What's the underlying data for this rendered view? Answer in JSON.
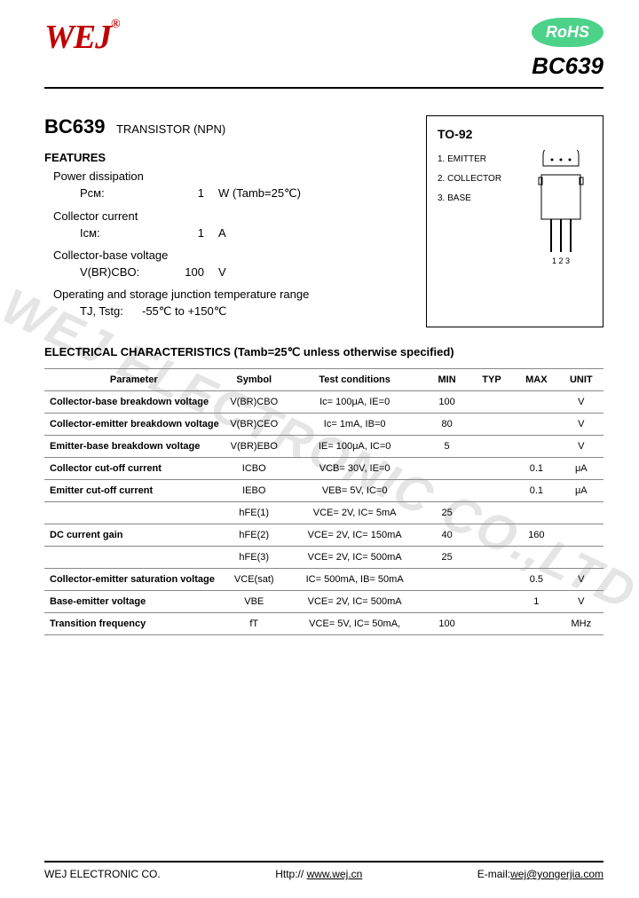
{
  "header": {
    "logo_text": "WEJ",
    "logo_reg": "®",
    "logo_color": "#c00000",
    "rohs_text": "RoHS",
    "rohs_bg": "#4dd28a",
    "part_number": "BC639"
  },
  "title": {
    "part": "BC639",
    "type": "TRANSISTOR (NPN)"
  },
  "features_heading": "FEATURES",
  "features": [
    {
      "label": "Power dissipation",
      "symbol": "Pᴄᴍ:",
      "value": "1",
      "unit": "W (Tamb=25℃)"
    },
    {
      "label": "Collector current",
      "symbol": "Iᴄᴍ:",
      "value": "1",
      "unit": "A"
    },
    {
      "label": "Collector-base voltage",
      "symbol": "V(BR)CBO:",
      "value": "100",
      "unit": "V"
    }
  ],
  "temp_label": "Operating and storage junction temperature range",
  "temp_symbol": "TJ, Tstg:",
  "temp_value": "-55℃ to +150℃",
  "package": {
    "name": "TO-92",
    "pins": [
      "1. EMITTER",
      "2. COLLECTOR",
      "3. BASE"
    ],
    "pin_labels": "1 2 3"
  },
  "elec_heading": "ELECTRICAL CHARACTERISTICS (Tamb=25℃    unless   otherwise   specified)",
  "table": {
    "columns": [
      "Parameter",
      "Symbol",
      "Test   conditions",
      "MIN",
      "TYP",
      "MAX",
      "UNIT"
    ],
    "rows": [
      {
        "param": "Collector-base breakdown voltage",
        "symbol": "V(BR)CBO",
        "cond": "Ic= 100μA, IE=0",
        "min": "100",
        "typ": "",
        "max": "",
        "unit": "V"
      },
      {
        "param": "Collector-emitter breakdown voltage",
        "symbol": "V(BR)CEO",
        "cond": "Ic= 1mA, IB=0",
        "min": "80",
        "typ": "",
        "max": "",
        "unit": "V"
      },
      {
        "param": "Emitter-base breakdown voltage",
        "symbol": "V(BR)EBO",
        "cond": "IE= 100μA, IC=0",
        "min": "5",
        "typ": "",
        "max": "",
        "unit": "V"
      },
      {
        "param": "Collector cut-off current",
        "symbol": "ICBO",
        "cond": "VCB= 30V, IE=0",
        "min": "",
        "typ": "",
        "max": "0.1",
        "unit": "μA"
      },
      {
        "param": "Emitter cut-off current",
        "symbol": "IEBO",
        "cond": "VEB= 5V, IC=0",
        "min": "",
        "typ": "",
        "max": "0.1",
        "unit": "μA"
      },
      {
        "param": "",
        "symbol": "hFE(1)",
        "cond": "VCE= 2V, IC= 5mA",
        "min": "25",
        "typ": "",
        "max": "",
        "unit": ""
      },
      {
        "param": "DC current gain",
        "symbol": "hFE(2)",
        "cond": "VCE= 2V, IC= 150mA",
        "min": "40",
        "typ": "",
        "max": "160",
        "unit": ""
      },
      {
        "param": "",
        "symbol": "hFE(3)",
        "cond": "VCE= 2V, IC= 500mA",
        "min": "25",
        "typ": "",
        "max": "",
        "unit": ""
      },
      {
        "param": "Collector-emitter saturation voltage",
        "symbol": "VCE(sat)",
        "cond": "IC= 500mA, IB= 50mA",
        "min": "",
        "typ": "",
        "max": "0.5",
        "unit": "V"
      },
      {
        "param": "Base-emitter voltage",
        "symbol": "VBE",
        "cond": "VCE= 2V, IC= 500mA",
        "min": "",
        "typ": "",
        "max": "1",
        "unit": "V"
      },
      {
        "param": "Transition frequency",
        "symbol": "fT",
        "cond": "VCE= 5V, IC= 50mA,",
        "min": "100",
        "typ": "",
        "max": "",
        "unit": "MHz"
      }
    ],
    "col_widths": [
      "32%",
      "11%",
      "25%",
      "8%",
      "8%",
      "8%",
      "8%"
    ]
  },
  "footer": {
    "company": "WEJ  ELECTRONIC  CO.",
    "url_label": "Http://",
    "url": "www.wej.cn",
    "email_label": "E-mail:",
    "email": "wej@yongerjia.com"
  },
  "watermark": "WEJ  ELECTRONIC  CO.,LTD"
}
